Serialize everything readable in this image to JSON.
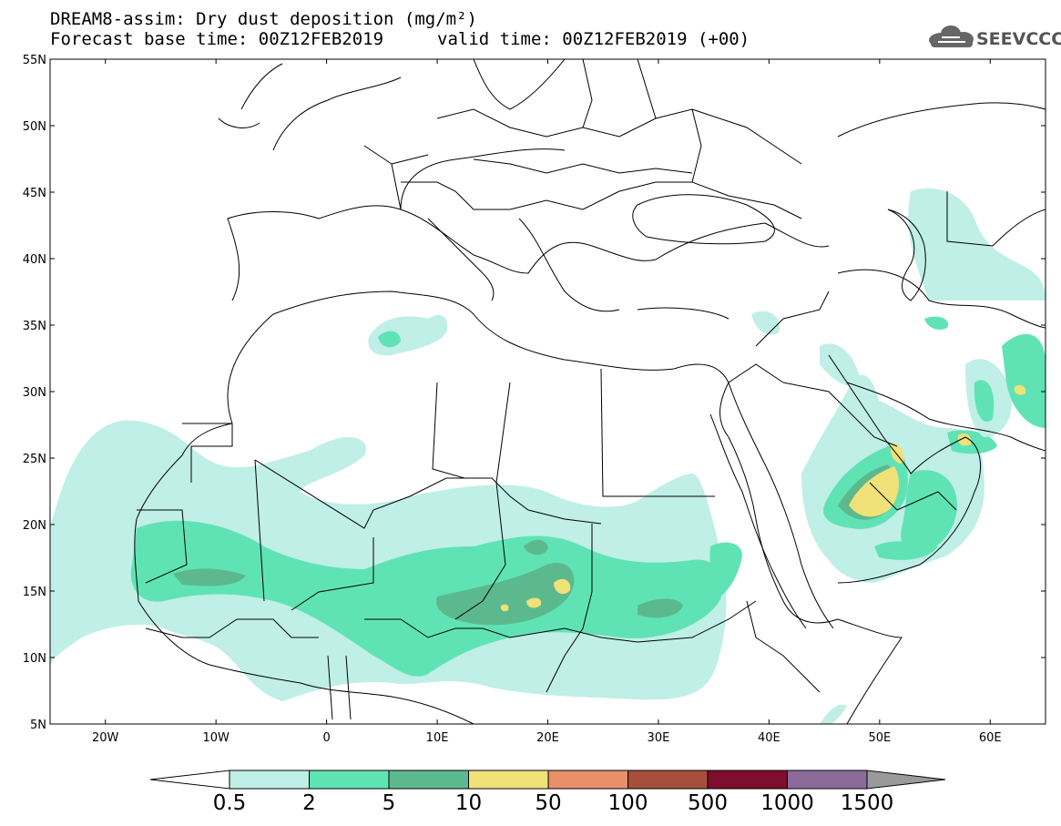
{
  "header": {
    "title_line1": "DREAM8-assim: Dry dust deposition (mg/m²)",
    "title_line2_left": "Forecast base time: 00Z12FEB2019",
    "title_line2_right": "valid time: 00Z12FEB2019 (+00)",
    "logo_text": "SEEVCCC",
    "logo_icon": "cloud-icon"
  },
  "map": {
    "lon_range": [
      -25,
      65
    ],
    "lat_range": [
      5,
      55
    ],
    "lat_ticks": [
      {
        "value": 55,
        "label": "55N"
      },
      {
        "value": 50,
        "label": "50N"
      },
      {
        "value": 45,
        "label": "45N"
      },
      {
        "value": 40,
        "label": "40N"
      },
      {
        "value": 35,
        "label": "35N"
      },
      {
        "value": 30,
        "label": "30N"
      },
      {
        "value": 25,
        "label": "25N"
      },
      {
        "value": 20,
        "label": "20N"
      },
      {
        "value": 15,
        "label": "15N"
      },
      {
        "value": 10,
        "label": "10N"
      },
      {
        "value": 5,
        "label": "5N"
      }
    ],
    "lon_ticks": [
      {
        "value": -20,
        "label": "20W"
      },
      {
        "value": -10,
        "label": "10W"
      },
      {
        "value": 0,
        "label": "0"
      },
      {
        "value": 10,
        "label": "10E"
      },
      {
        "value": 20,
        "label": "20E"
      },
      {
        "value": 30,
        "label": "30E"
      },
      {
        "value": 40,
        "label": "40E"
      },
      {
        "value": 50,
        "label": "50E"
      },
      {
        "value": 60,
        "label": "60E"
      }
    ]
  },
  "colorbar": {
    "colors": [
      "#bfefe6",
      "#5fe3b5",
      "#5cb98e",
      "#f0e178",
      "#e8906a",
      "#a64e3c",
      "#7f0d2d",
      "#8c6b9b"
    ],
    "upper_extension_color": "#9a9a9a",
    "lower_extension_color": "#ffffff",
    "labels": [
      "0.5",
      "2",
      "5",
      "10",
      "50",
      "100",
      "500",
      "1000",
      "1500"
    ]
  },
  "legend_colors": {
    "c1": "#bfefe6",
    "c2": "#5fe3b5",
    "c3": "#5cb98e",
    "c4": "#f0e178"
  }
}
